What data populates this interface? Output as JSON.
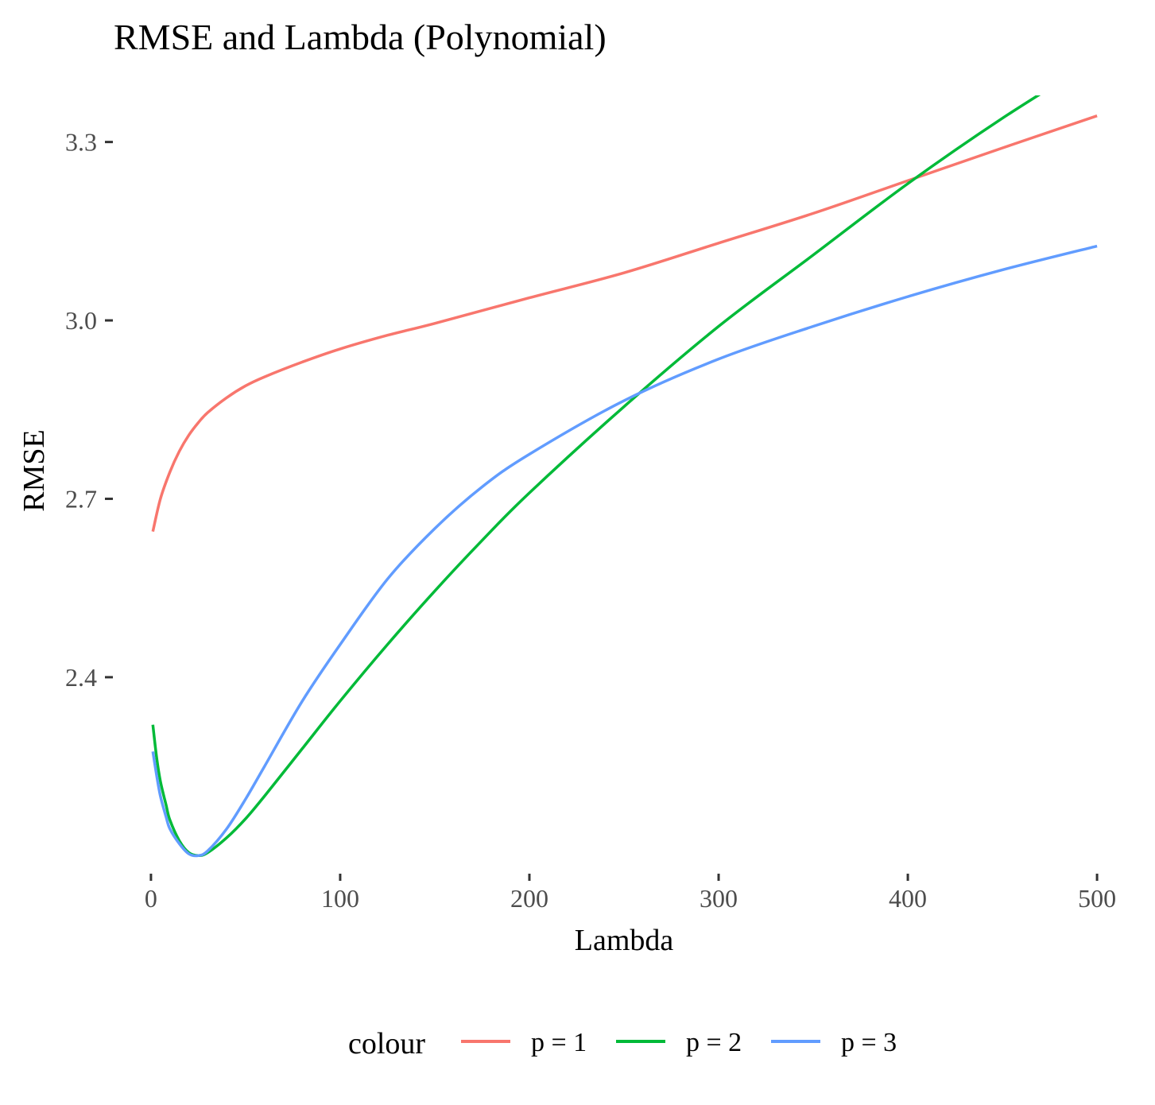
{
  "chart_data": {
    "type": "line",
    "title": "RMSE and Lambda (Polynomial)",
    "xlabel": "Lambda",
    "ylabel": "RMSE",
    "xlim": [
      -5,
      505
    ],
    "ylim": [
      2.075,
      3.365
    ],
    "x_ticks": [
      0,
      100,
      200,
      300,
      400,
      500
    ],
    "x_tick_labels": [
      "0",
      "100",
      "200",
      "300",
      "400",
      "500"
    ],
    "y_ticks": [
      2.4,
      2.7,
      3.0,
      3.3
    ],
    "y_tick_labels": [
      "2.4",
      "2.7",
      "3.0",
      "3.3"
    ],
    "grid": false,
    "legend": {
      "title": "colour",
      "position": "bottom"
    },
    "series": [
      {
        "name": "p = 1",
        "color": "#F8766D",
        "x": [
          1,
          5,
          10,
          15,
          20,
          25,
          30,
          40,
          50,
          60,
          80,
          100,
          125,
          150,
          200,
          250,
          300,
          350,
          400,
          450,
          500
        ],
        "y": [
          2.645,
          2.7,
          2.745,
          2.78,
          2.807,
          2.828,
          2.845,
          2.87,
          2.89,
          2.905,
          2.93,
          2.952,
          2.975,
          2.995,
          3.038,
          3.08,
          3.13,
          3.18,
          3.235,
          3.29,
          3.344
        ]
      },
      {
        "name": "p = 2",
        "color": "#00BA38",
        "x": [
          1,
          3,
          5,
          8,
          10,
          15,
          20,
          25,
          30,
          40,
          50,
          60,
          80,
          100,
          125,
          150,
          175,
          200,
          250,
          300,
          350,
          400,
          450,
          500
        ],
        "y": [
          2.32,
          2.265,
          2.225,
          2.185,
          2.16,
          2.125,
          2.105,
          2.1,
          2.105,
          2.13,
          2.162,
          2.2,
          2.28,
          2.36,
          2.455,
          2.545,
          2.63,
          2.71,
          2.855,
          2.99,
          3.11,
          3.23,
          3.34,
          3.44
        ]
      },
      {
        "name": "p = 3",
        "color": "#619CFF",
        "x": [
          1,
          3,
          5,
          8,
          10,
          15,
          20,
          25,
          30,
          40,
          50,
          60,
          80,
          100,
          125,
          150,
          175,
          200,
          250,
          300,
          350,
          400,
          450,
          500
        ],
        "y": [
          2.275,
          2.235,
          2.2,
          2.165,
          2.145,
          2.12,
          2.103,
          2.1,
          2.108,
          2.145,
          2.195,
          2.25,
          2.36,
          2.455,
          2.565,
          2.65,
          2.72,
          2.775,
          2.865,
          2.935,
          2.99,
          3.04,
          3.085,
          3.125
        ]
      }
    ]
  }
}
